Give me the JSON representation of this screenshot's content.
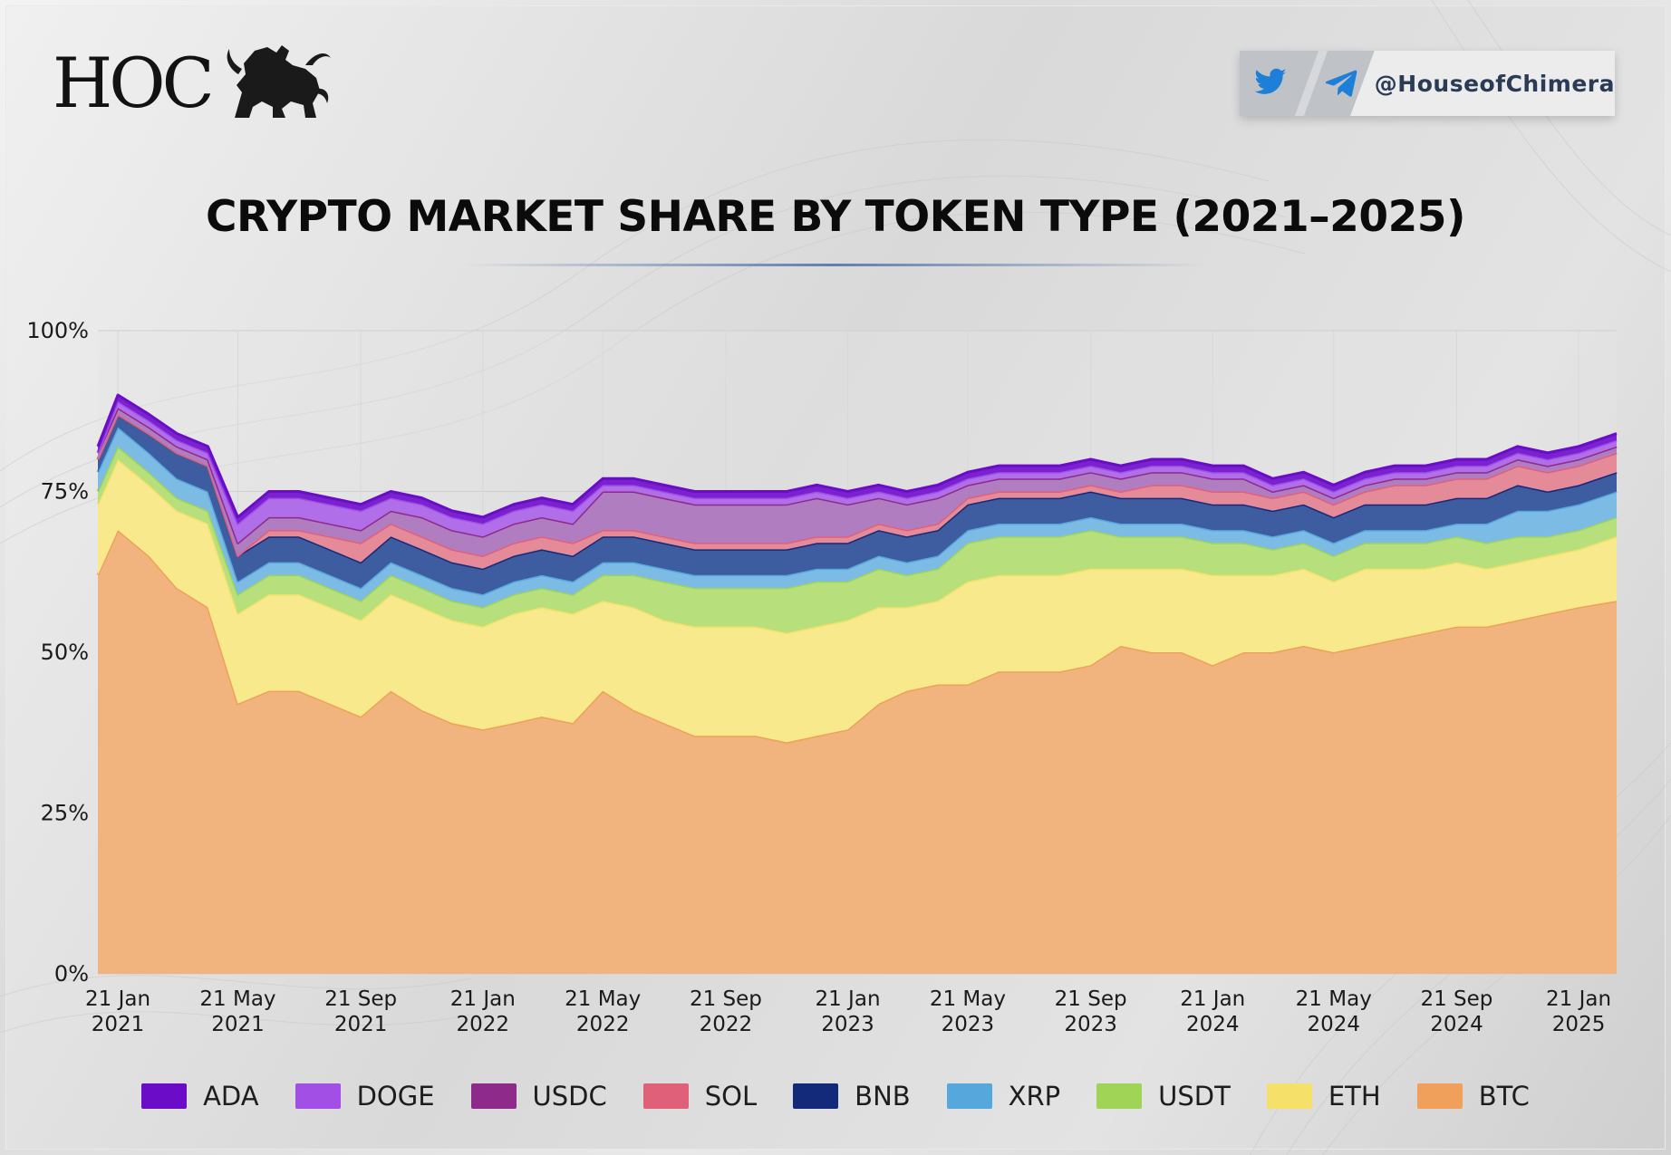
{
  "brand": {
    "logo_text": "HOC",
    "logo_mark_icon": "chimera-lion-icon"
  },
  "social": {
    "handle": "@HouseofChimera",
    "icons": [
      "twitter-icon",
      "telegram-icon"
    ],
    "twitter_color": "#1d7fd8",
    "telegram_color": "#1d7fd8"
  },
  "chart_data": {
    "type": "area",
    "stacked": true,
    "title": "CRYPTO MARKET SHARE BY TOKEN TYPE (2021–2025)",
    "xlabel": "",
    "ylabel": "",
    "ylim": [
      0,
      100
    ],
    "y_ticks": [
      "0%",
      "25%",
      "50%",
      "75%",
      "100%"
    ],
    "y_tick_values": [
      0,
      25,
      50,
      75,
      100
    ],
    "x_ticks": [
      {
        "line1": "21 Jan",
        "line2": "2021",
        "date": "2021-01-21"
      },
      {
        "line1": "21 May",
        "line2": "2021",
        "date": "2021-05-21"
      },
      {
        "line1": "21 Sep",
        "line2": "2021",
        "date": "2021-09-21"
      },
      {
        "line1": "21 Jan",
        "line2": "2022",
        "date": "2022-01-21"
      },
      {
        "line1": "21 May",
        "line2": "2022",
        "date": "2022-05-21"
      },
      {
        "line1": "21 Sep",
        "line2": "2022",
        "date": "2022-09-21"
      },
      {
        "line1": "21 Jan",
        "line2": "2023",
        "date": "2023-01-21"
      },
      {
        "line1": "21 May",
        "line2": "2023",
        "date": "2023-05-21"
      },
      {
        "line1": "21 Sep",
        "line2": "2023",
        "date": "2023-09-21"
      },
      {
        "line1": "21 Jan",
        "line2": "2024",
        "date": "2024-01-21"
      },
      {
        "line1": "21 May",
        "line2": "2024",
        "date": "2024-05-21"
      },
      {
        "line1": "21 Sep",
        "line2": "2024",
        "date": "2024-09-21"
      },
      {
        "line1": "21 Jan",
        "line2": "2025",
        "date": "2025-01-21"
      }
    ],
    "x_range": [
      "2021-01-01",
      "2025-02-28"
    ],
    "grid": true,
    "legend_position": "bottom",
    "x": [
      "2021-01-01",
      "2021-01-21",
      "2021-02-21",
      "2021-03-21",
      "2021-04-21",
      "2021-05-21",
      "2021-06-21",
      "2021-07-21",
      "2021-08-21",
      "2021-09-21",
      "2021-10-21",
      "2021-11-21",
      "2021-12-21",
      "2022-01-21",
      "2022-02-21",
      "2022-03-21",
      "2022-04-21",
      "2022-05-21",
      "2022-06-21",
      "2022-07-21",
      "2022-08-21",
      "2022-09-21",
      "2022-10-21",
      "2022-11-21",
      "2022-12-21",
      "2023-01-21",
      "2023-02-21",
      "2023-03-21",
      "2023-04-21",
      "2023-05-21",
      "2023-06-21",
      "2023-07-21",
      "2023-08-21",
      "2023-09-21",
      "2023-10-21",
      "2023-11-21",
      "2023-12-21",
      "2024-01-21",
      "2024-02-21",
      "2024-03-21",
      "2024-04-21",
      "2024-05-21",
      "2024-06-21",
      "2024-07-21",
      "2024-08-21",
      "2024-09-21",
      "2024-10-21",
      "2024-11-21",
      "2024-12-21",
      "2025-01-21",
      "2025-02-28"
    ],
    "series": [
      {
        "name": "BTC",
        "color": "#f0a05a",
        "fill": "#f2b47e",
        "values": [
          62,
          69,
          65,
          60,
          57,
          42,
          44,
          44,
          42,
          40,
          44,
          41,
          39,
          38,
          39,
          40,
          39,
          44,
          41,
          39,
          37,
          37,
          37,
          36,
          37,
          38,
          42,
          44,
          45,
          45,
          47,
          47,
          47,
          48,
          51,
          50,
          50,
          48,
          50,
          50,
          51,
          50,
          51,
          52,
          53,
          54,
          54,
          55,
          56,
          57,
          58
        ]
      },
      {
        "name": "ETH",
        "color": "#f5e06a",
        "fill": "#f8e98c",
        "values": [
          11,
          11,
          11,
          12,
          13,
          14,
          15,
          15,
          15,
          15,
          15,
          16,
          16,
          16,
          17,
          17,
          17,
          14,
          16,
          16,
          17,
          17,
          17,
          17,
          17,
          17,
          15,
          13,
          13,
          16,
          15,
          15,
          15,
          15,
          12,
          13,
          13,
          14,
          12,
          12,
          12,
          11,
          12,
          11,
          10,
          10,
          9,
          9,
          9,
          9,
          10
        ]
      },
      {
        "name": "USDT",
        "color": "#9fd456",
        "fill": "#b7e07c",
        "values": [
          2,
          2,
          2,
          2,
          2,
          3,
          3,
          3,
          3,
          3,
          3,
          3,
          3,
          3,
          3,
          3,
          3,
          4,
          5,
          6,
          6,
          6,
          6,
          7,
          7,
          6,
          6,
          5,
          5,
          6,
          6,
          6,
          6,
          6,
          5,
          5,
          5,
          5,
          5,
          4,
          4,
          4,
          4,
          4,
          4,
          4,
          4,
          4,
          3,
          3,
          3
        ]
      },
      {
        "name": "XRP",
        "color": "#56a8dc",
        "fill": "#7cbbe4",
        "values": [
          3,
          3,
          3,
          3,
          3,
          2,
          2,
          2,
          2,
          2,
          2,
          2,
          2,
          2,
          2,
          2,
          2,
          2,
          2,
          2,
          2,
          2,
          2,
          2,
          2,
          2,
          2,
          2,
          2,
          2,
          2,
          2,
          2,
          2,
          2,
          2,
          2,
          2,
          2,
          2,
          2,
          2,
          2,
          2,
          2,
          2,
          3,
          4,
          4,
          4,
          4
        ]
      },
      {
        "name": "BNB",
        "color": "#132a7a",
        "fill": "#3e5ca0",
        "values": [
          2,
          2,
          3,
          4,
          4,
          4,
          4,
          4,
          4,
          4,
          4,
          4,
          4,
          4,
          4,
          4,
          4,
          4,
          4,
          4,
          4,
          4,
          4,
          4,
          4,
          4,
          4,
          4,
          4,
          4,
          4,
          4,
          4,
          4,
          4,
          4,
          4,
          4,
          4,
          4,
          4,
          4,
          4,
          4,
          4,
          4,
          4,
          4,
          3,
          3,
          3
        ]
      },
      {
        "name": "SOL",
        "color": "#e0607a",
        "fill": "#e58a99",
        "values": [
          0,
          0,
          0,
          0,
          0,
          0,
          1,
          1,
          2,
          3,
          2,
          2,
          2,
          2,
          2,
          2,
          2,
          1,
          1,
          1,
          1,
          1,
          1,
          1,
          1,
          1,
          1,
          1,
          1,
          1,
          1,
          1,
          1,
          1,
          1,
          2,
          2,
          2,
          2,
          2,
          2,
          2,
          2,
          3,
          3,
          3,
          3,
          3,
          3,
          3,
          3
        ]
      },
      {
        "name": "USDC",
        "color": "#8e2a8a",
        "fill": "#b07ec0",
        "values": [
          1,
          1,
          1,
          1,
          1,
          2,
          2,
          2,
          2,
          2,
          2,
          3,
          3,
          3,
          3,
          3,
          3,
          6,
          6,
          6,
          6,
          6,
          6,
          6,
          6,
          5,
          4,
          4,
          4,
          2,
          2,
          2,
          2,
          2,
          2,
          2,
          2,
          2,
          2,
          1,
          1,
          1,
          1,
          1,
          1,
          1,
          1,
          1,
          1,
          1,
          1
        ]
      },
      {
        "name": "DOGE",
        "color": "#a24fe6",
        "fill": "#b06ee8",
        "values": [
          0,
          1,
          1,
          1,
          1,
          3,
          3,
          3,
          3,
          3,
          2,
          2,
          2,
          2,
          2,
          2,
          2,
          1,
          1,
          1,
          1,
          1,
          1,
          1,
          1,
          1,
          1,
          1,
          1,
          1,
          1,
          1,
          1,
          1,
          1,
          1,
          1,
          1,
          1,
          1,
          1,
          1,
          1,
          1,
          1,
          1,
          1,
          1,
          1,
          1,
          1
        ]
      },
      {
        "name": "ADA",
        "color": "#6a0cc8",
        "fill": "#7a22d0",
        "values": [
          1,
          1,
          1,
          1,
          1,
          1,
          1,
          1,
          1,
          1,
          1,
          1,
          1,
          1,
          1,
          1,
          1,
          1,
          1,
          1,
          1,
          1,
          1,
          1,
          1,
          1,
          1,
          1,
          1,
          1,
          1,
          1,
          1,
          1,
          1,
          1,
          1,
          1,
          1,
          1,
          1,
          1,
          1,
          1,
          1,
          1,
          1,
          1,
          1,
          1,
          1
        ]
      }
    ]
  },
  "legend": {
    "items": [
      {
        "label": "ADA",
        "color": "#6a0cc8"
      },
      {
        "label": "DOGE",
        "color": "#a24fe6"
      },
      {
        "label": "USDC",
        "color": "#8e2a8a"
      },
      {
        "label": "SOL",
        "color": "#e0607a"
      },
      {
        "label": "BNB",
        "color": "#132a7a"
      },
      {
        "label": "XRP",
        "color": "#56a8dc"
      },
      {
        "label": "USDT",
        "color": "#9fd456"
      },
      {
        "label": "ETH",
        "color": "#f5e06a"
      },
      {
        "label": "BTC",
        "color": "#f0a05a"
      }
    ]
  }
}
